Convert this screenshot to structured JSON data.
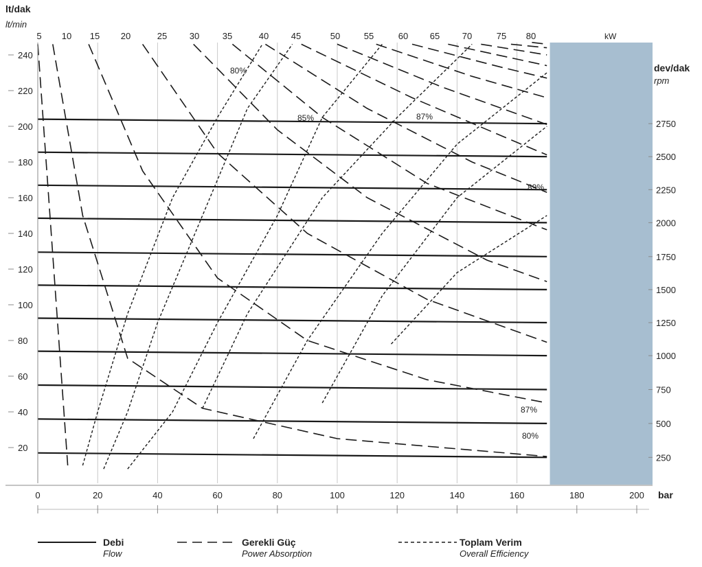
{
  "chart_data": {
    "type": "line",
    "x_axis": {
      "unit": "bar",
      "ticks": [
        "0",
        "20",
        "40",
        "60",
        "80",
        "100",
        "120",
        "140",
        "160",
        "180",
        "200"
      ],
      "range": [
        0,
        205
      ]
    },
    "y_axis_left": {
      "unit": "lt/dak",
      "unit_alt": "lt/min",
      "ticks": [
        "20",
        "40",
        "60",
        "80",
        "100",
        "120",
        "140",
        "160",
        "180",
        "200",
        "220",
        "240"
      ],
      "range": [
        0,
        250
      ]
    },
    "y_axis_right": {
      "unit": "dev/dak",
      "unit_alt": "rpm",
      "ticks": [
        "250",
        "500",
        "750",
        "1000",
        "1250",
        "1500",
        "1750",
        "2000",
        "2250",
        "2500",
        "2750"
      ]
    },
    "top_axis": {
      "unit": "kW",
      "ticks": [
        "5",
        "10",
        "15",
        "20",
        "25",
        "30",
        "35",
        "40",
        "45",
        "50",
        "55",
        "60",
        "65",
        "70",
        "75",
        "80"
      ]
    },
    "flow_lines": [
      {
        "rpm": 250,
        "y": [
          17,
          14.5
        ]
      },
      {
        "rpm": 500,
        "y": [
          36,
          33.5
        ]
      },
      {
        "rpm": 750,
        "y": [
          55,
          52.5
        ]
      },
      {
        "rpm": 1000,
        "y": [
          74,
          71.5
        ]
      },
      {
        "rpm": 1250,
        "y": [
          92.5,
          90
        ]
      },
      {
        "rpm": 1500,
        "y": [
          111,
          108.5
        ]
      },
      {
        "rpm": 1750,
        "y": [
          129.5,
          127
        ]
      },
      {
        "rpm": 2000,
        "y": [
          148.5,
          146
        ]
      },
      {
        "rpm": 2250,
        "y": [
          167,
          164.5
        ]
      },
      {
        "rpm": 2500,
        "y": [
          185.5,
          183
        ]
      },
      {
        "rpm": 2750,
        "y": [
          204,
          201.5
        ]
      }
    ],
    "flow_x_range": [
      0,
      170
    ],
    "power_absorption": [
      {
        "kw": 5,
        "points": [
          [
            0,
            246
          ],
          [
            10,
            10
          ]
        ]
      },
      {
        "kw": 10,
        "points": [
          [
            5,
            246
          ],
          [
            15,
            150
          ],
          [
            30,
            70
          ],
          [
            55,
            42
          ],
          [
            100,
            25
          ],
          [
            170,
            15
          ]
        ]
      },
      {
        "kw": 15,
        "points": [
          [
            17,
            246
          ],
          [
            35,
            175
          ],
          [
            60,
            115
          ],
          [
            90,
            80
          ],
          [
            130,
            58
          ],
          [
            170,
            45
          ]
        ]
      },
      {
        "kw": 20,
        "points": [
          [
            35,
            246
          ],
          [
            60,
            185
          ],
          [
            90,
            140
          ],
          [
            130,
            103
          ],
          [
            170,
            79
          ]
        ]
      },
      {
        "kw": 25,
        "points": [
          [
            52,
            246
          ],
          [
            80,
            198
          ],
          [
            110,
            160
          ],
          [
            150,
            125
          ],
          [
            170,
            113
          ]
        ]
      },
      {
        "kw": 30,
        "points": [
          [
            65,
            246
          ],
          [
            95,
            205
          ],
          [
            130,
            168
          ],
          [
            170,
            142
          ]
        ]
      },
      {
        "kw": 35,
        "points": [
          [
            76,
            246
          ],
          [
            110,
            210
          ],
          [
            145,
            180
          ],
          [
            170,
            163
          ]
        ]
      },
      {
        "kw": 40,
        "points": [
          [
            88,
            246
          ],
          [
            125,
            216
          ],
          [
            160,
            191
          ],
          [
            170,
            184
          ]
        ]
      },
      {
        "kw": 45,
        "points": [
          [
            100,
            246
          ],
          [
            135,
            222
          ],
          [
            170,
            201
          ]
        ]
      },
      {
        "kw": 50,
        "points": [
          [
            113,
            246
          ],
          [
            145,
            228
          ],
          [
            170,
            216
          ]
        ]
      },
      {
        "kw": 55,
        "points": [
          [
            125,
            246
          ],
          [
            155,
            233
          ],
          [
            170,
            227
          ]
        ]
      },
      {
        "kw": 60,
        "points": [
          [
            137,
            246
          ],
          [
            170,
            234
          ]
        ]
      },
      {
        "kw": 65,
        "points": [
          [
            148,
            246
          ],
          [
            170,
            240
          ]
        ]
      },
      {
        "kw": 70,
        "points": [
          [
            158,
            246
          ],
          [
            170,
            244
          ]
        ]
      },
      {
        "kw": 75,
        "points": [
          [
            165,
            247
          ],
          [
            170,
            246
          ]
        ]
      }
    ],
    "overall_efficiency": [
      {
        "label": "80%",
        "points": [
          [
            15,
            10
          ],
          [
            20,
            40
          ],
          [
            30,
            95
          ],
          [
            45,
            160
          ],
          [
            60,
            205
          ],
          [
            75,
            246
          ]
        ]
      },
      {
        "label": "",
        "points": [
          [
            22,
            8
          ],
          [
            30,
            40
          ],
          [
            40,
            90
          ],
          [
            55,
            150
          ],
          [
            70,
            210
          ],
          [
            85,
            246
          ]
        ]
      },
      {
        "label": "",
        "points": [
          [
            30,
            8
          ],
          [
            45,
            40
          ],
          [
            60,
            90
          ],
          [
            80,
            150
          ],
          [
            95,
            205
          ],
          [
            115,
            246
          ]
        ]
      },
      {
        "label": "85%",
        "points": [
          [
            55,
            42
          ],
          [
            70,
            95
          ],
          [
            95,
            160
          ],
          [
            120,
            205
          ],
          [
            145,
            246
          ]
        ]
      },
      {
        "label": "",
        "points": [
          [
            72,
            25
          ],
          [
            90,
            80
          ],
          [
            115,
            140
          ],
          [
            140,
            190
          ],
          [
            170,
            230
          ]
        ]
      },
      {
        "label": "87%",
        "points": [
          [
            95,
            45
          ],
          [
            115,
            105
          ],
          [
            140,
            160
          ],
          [
            170,
            200
          ]
        ]
      },
      {
        "label": "89%",
        "points": [
          [
            118,
            78
          ],
          [
            140,
            118
          ],
          [
            170,
            150
          ]
        ]
      }
    ],
    "annotations": [
      "80%",
      "85%",
      "87%",
      "89%",
      "87%",
      "80%"
    ],
    "shaded_region_x_from": 171
  },
  "legend": {
    "flow": {
      "tr": "Debi",
      "en": "Flow"
    },
    "power": {
      "tr": "Gerekli Güç",
      "en": "Power Absorption"
    },
    "efficiency": {
      "tr": "Toplam Verim",
      "en": "Overall Efficiency"
    }
  },
  "colors": {
    "shaded_region": "#a7bed0",
    "lines": "#1a1a1a"
  }
}
